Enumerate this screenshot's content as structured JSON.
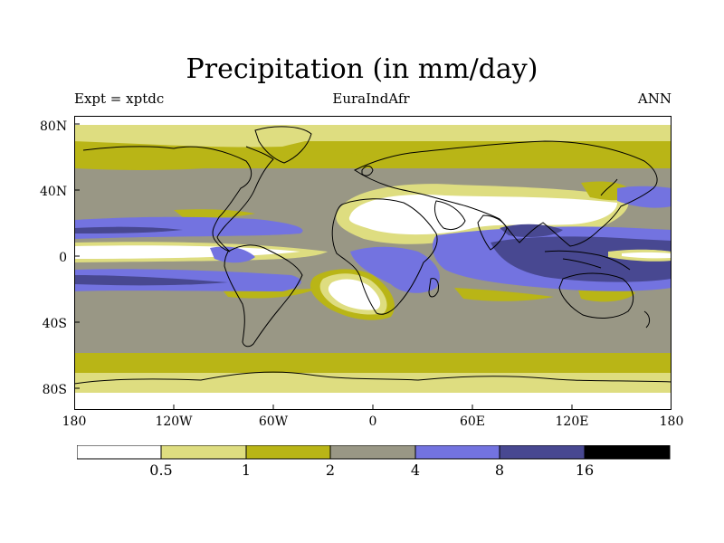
{
  "header": {
    "title": "Precipitation (in mm/day)",
    "left": "Expt = xptdc",
    "center": "EuraIndAfr",
    "right": "ANN"
  },
  "axes": {
    "lat_labels": [
      "80N",
      "40N",
      "0",
      "40S",
      "80S"
    ],
    "lat_values": [
      80,
      40,
      0,
      -40,
      -80
    ],
    "lon_labels": [
      "180",
      "120W",
      "60W",
      "0",
      "60E",
      "120E",
      "180"
    ],
    "lon_values": [
      -180,
      -120,
      -60,
      0,
      60,
      120,
      180
    ],
    "lat_range": [
      -90,
      90
    ],
    "lon_range": [
      -180,
      180
    ]
  },
  "colorbar": {
    "labels": [
      "0.5",
      "1",
      "2",
      "4",
      "8",
      "16"
    ],
    "levels": [
      0.5,
      1,
      2,
      4,
      8,
      16
    ],
    "colors": [
      "#ffffff",
      "#dedd80",
      "#b9b516",
      "#999785",
      "#7373e0",
      "#484891",
      "#000000"
    ]
  },
  "map_data": {
    "type": "filled-contour",
    "projection": "cylindrical-equidistant",
    "variable": "Precipitation",
    "units": "mm/day"
  }
}
